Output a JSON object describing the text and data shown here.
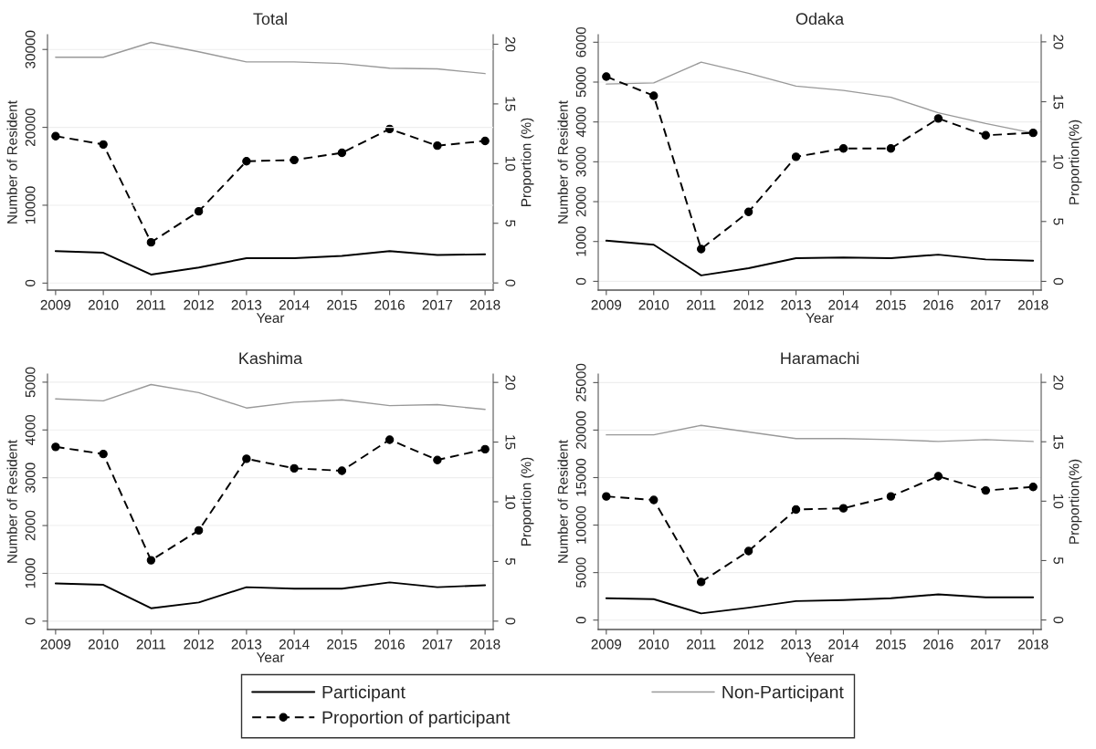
{
  "chart_data": [
    {
      "type": "line",
      "title": "Total",
      "xlabel": "Year",
      "ylabel": "Number of Resident",
      "y2label": "Proportion (%)",
      "x": [
        2009,
        2010,
        2011,
        2012,
        2013,
        2014,
        2015,
        2016,
        2017,
        2018
      ],
      "xlim": [
        2008.83,
        2018.17
      ],
      "xticks": [
        2009,
        2010,
        2011,
        2012,
        2013,
        2014,
        2015,
        2016,
        2017,
        2018
      ],
      "ylim": [
        -900,
        31900
      ],
      "yticks": [
        0,
        10000,
        20000,
        30000
      ],
      "y2lim": [
        -0.6,
        20.8
      ],
      "y2ticks": [
        0,
        5,
        10,
        15,
        20
      ],
      "grid": "y",
      "legend": "bottom",
      "series": [
        {
          "name": "Participant",
          "color": "#000000",
          "line_style": "solid",
          "marker": "none",
          "values": [
            4100,
            3900,
            1100,
            2000,
            3200,
            3200,
            3500,
            4100,
            3600,
            3700
          ]
        },
        {
          "name": "Non-Participant",
          "color": "#999999",
          "line_style": "solid",
          "marker": "none",
          "values": [
            29000,
            29000,
            30900,
            29700,
            28400,
            28400,
            28200,
            27600,
            27500,
            26900
          ]
        },
        {
          "name": "Proportion of participant",
          "color": "#000000",
          "line_style": "dashed",
          "marker": "circle",
          "axis": "y2",
          "values": [
            12.3,
            11.6,
            3.4,
            6.0,
            10.2,
            10.3,
            10.9,
            12.9,
            11.5,
            11.9
          ]
        }
      ]
    },
    {
      "type": "line",
      "title": "Odaka",
      "xlabel": "Year",
      "ylabel": "Number of Resident",
      "y2label": "Proportion(%)",
      "x": [
        2009,
        2010,
        2011,
        2012,
        2013,
        2014,
        2015,
        2016,
        2017,
        2018
      ],
      "xlim": [
        2008.83,
        2018.17
      ],
      "xticks": [
        2009,
        2010,
        2011,
        2012,
        2013,
        2014,
        2015,
        2016,
        2017,
        2018
      ],
      "ylim": [
        -220,
        6190
      ],
      "yticks": [
        0,
        1000,
        2000,
        3000,
        4000,
        5000,
        6000
      ],
      "y2lim": [
        -0.73,
        20.6
      ],
      "y2ticks": [
        0,
        5,
        10,
        15,
        20
      ],
      "grid": "y",
      "series": [
        {
          "color": "#000000",
          "line_style": "solid",
          "marker": "none",
          "values": [
            1020,
            920,
            150,
            330,
            580,
            600,
            580,
            670,
            550,
            520
          ]
        },
        {
          "color": "#999999",
          "line_style": "solid",
          "marker": "none",
          "values": [
            4950,
            4980,
            5500,
            5220,
            4900,
            4790,
            4620,
            4230,
            3960,
            3720
          ]
        },
        {
          "color": "#000000",
          "line_style": "dashed",
          "marker": "circle",
          "axis": "y2",
          "values": [
            17.1,
            15.5,
            2.7,
            5.8,
            10.4,
            11.1,
            11.1,
            13.6,
            12.2,
            12.4
          ]
        }
      ]
    },
    {
      "type": "line",
      "title": "Kashima",
      "xlabel": "Year",
      "ylabel": "Number of Resident",
      "y2label": "Proportion (%)",
      "x": [
        2009,
        2010,
        2011,
        2012,
        2013,
        2014,
        2015,
        2016,
        2017,
        2018
      ],
      "xlim": [
        2008.83,
        2018.17
      ],
      "xticks": [
        2009,
        2010,
        2011,
        2012,
        2013,
        2014,
        2015,
        2016,
        2017,
        2018
      ],
      "ylim": [
        -175,
        5170
      ],
      "yticks": [
        0,
        1000,
        2000,
        3000,
        4000,
        5000
      ],
      "y2lim": [
        -0.7,
        20.7
      ],
      "y2ticks": [
        0,
        5,
        10,
        15,
        20
      ],
      "grid": "y",
      "series": [
        {
          "color": "#000000",
          "line_style": "solid",
          "marker": "none",
          "values": [
            790,
            760,
            270,
            390,
            710,
            680,
            680,
            810,
            710,
            750
          ]
        },
        {
          "color": "#999999",
          "line_style": "solid",
          "marker": "none",
          "values": [
            4650,
            4610,
            4950,
            4780,
            4460,
            4580,
            4630,
            4510,
            4530,
            4430
          ]
        },
        {
          "color": "#000000",
          "line_style": "dashed",
          "marker": "circle",
          "axis": "y2",
          "values": [
            14.6,
            14.0,
            5.1,
            7.6,
            13.6,
            12.8,
            12.6,
            15.2,
            13.5,
            14.4
          ]
        }
      ]
    },
    {
      "type": "line",
      "title": "Haramachi",
      "xlabel": "Year",
      "ylabel": "Number of Resident",
      "y2label": "Proportion(%)",
      "x": [
        2009,
        2010,
        2011,
        2012,
        2013,
        2014,
        2015,
        2016,
        2017,
        2018
      ],
      "xlim": [
        2008.83,
        2018.17
      ],
      "xticks": [
        2009,
        2010,
        2011,
        2012,
        2013,
        2014,
        2015,
        2016,
        2017,
        2018
      ],
      "ylim": [
        -990,
        25900
      ],
      "yticks": [
        0,
        5000,
        10000,
        15000,
        20000,
        25000
      ],
      "y2lim": [
        -0.8,
        20.7
      ],
      "y2ticks": [
        0,
        5,
        10,
        15,
        20
      ],
      "grid": "y",
      "series": [
        {
          "color": "#000000",
          "line_style": "solid",
          "marker": "none",
          "values": [
            2300,
            2200,
            700,
            1300,
            2000,
            2100,
            2300,
            2700,
            2400,
            2400
          ]
        },
        {
          "color": "#999999",
          "line_style": "solid",
          "marker": "none",
          "values": [
            19500,
            19500,
            20500,
            19800,
            19100,
            19100,
            19000,
            18800,
            19000,
            18800
          ]
        },
        {
          "color": "#000000",
          "line_style": "dashed",
          "marker": "circle",
          "axis": "y2",
          "values": [
            10.4,
            10.1,
            3.2,
            5.8,
            9.3,
            9.4,
            10.4,
            12.1,
            10.9,
            11.2
          ]
        }
      ]
    }
  ]
}
